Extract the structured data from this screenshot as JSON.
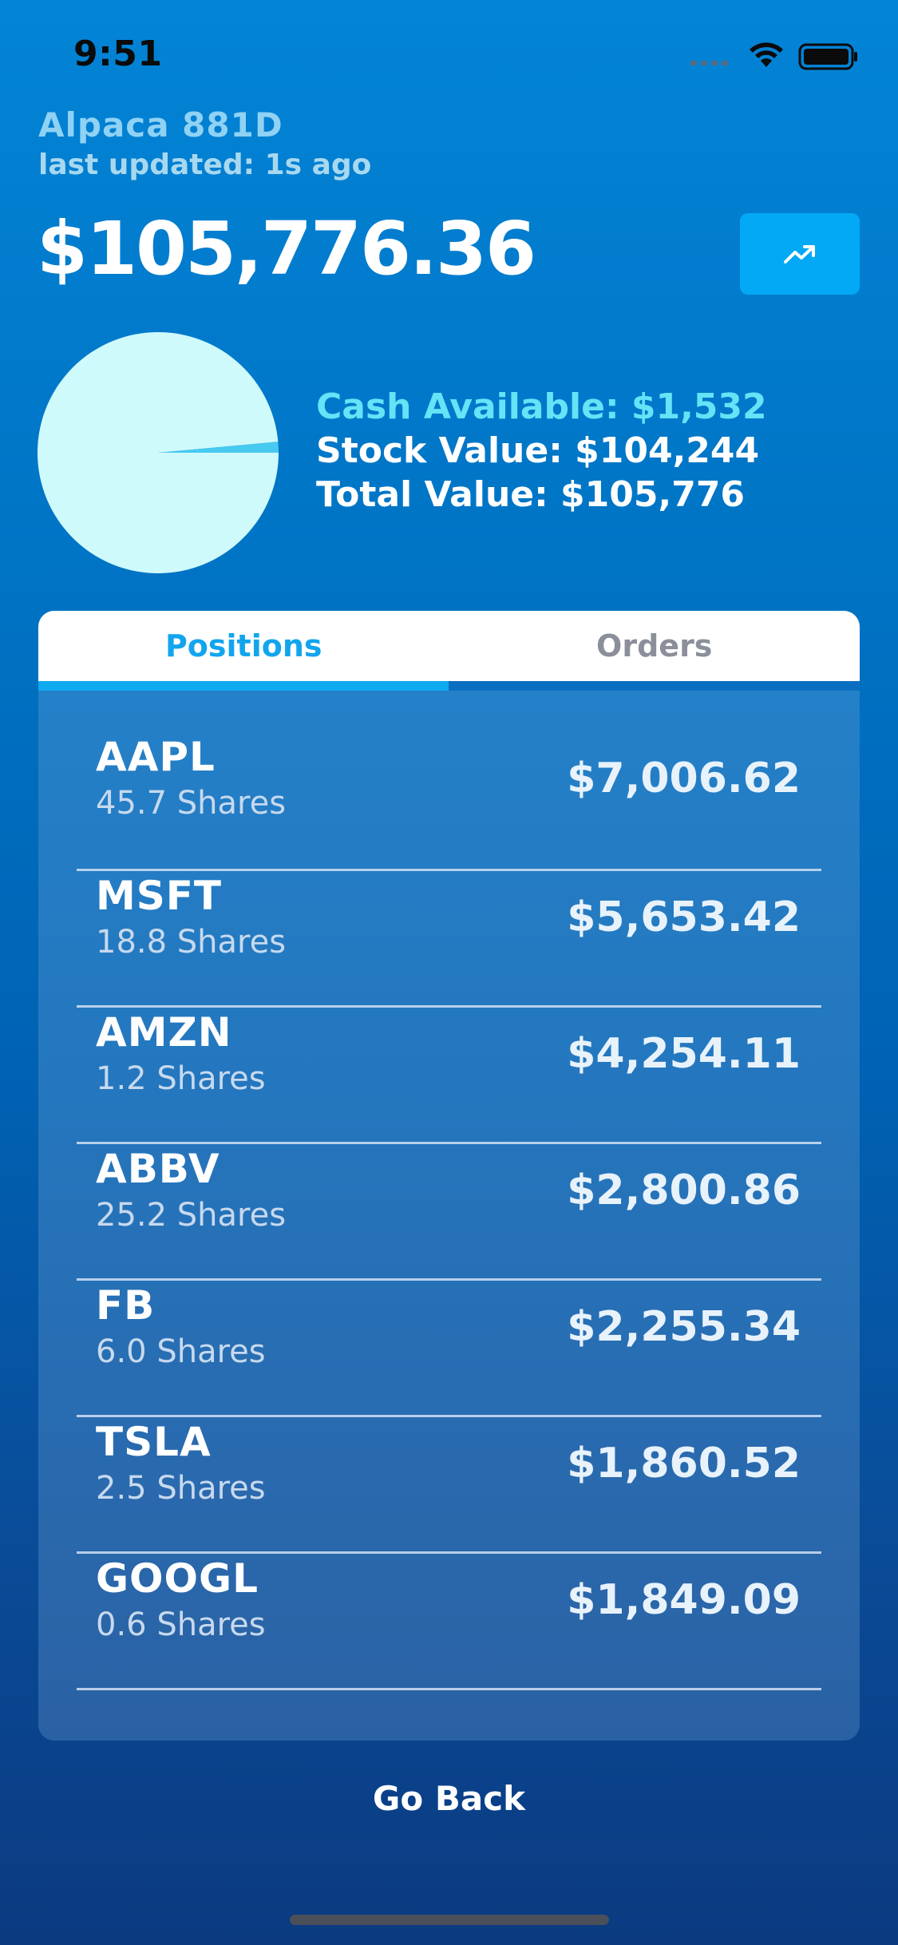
{
  "status_bar": {
    "time": "9:51"
  },
  "header": {
    "account_name": "Alpaca 881D",
    "last_updated": "last updated: 1s ago",
    "total_value": "$105,776.36",
    "chart_button_icon": "trending-up-icon"
  },
  "summary": {
    "cash": "Cash Available: $1,532",
    "stock": "Stock Value: $104,244",
    "total": "Total Value: $105,776",
    "pie": {
      "cash_value": 1532,
      "stock_value": 104244,
      "colors": {
        "cash": "#47c9f0",
        "stock": "#cffafb"
      }
    }
  },
  "tabs": [
    {
      "label": "Positions",
      "active": true
    },
    {
      "label": "Orders",
      "active": false
    }
  ],
  "positions": [
    {
      "symbol": "AAPL",
      "shares": "45.7 Shares",
      "value": "$7,006.62"
    },
    {
      "symbol": "MSFT",
      "shares": "18.8 Shares",
      "value": "$5,653.42"
    },
    {
      "symbol": "AMZN",
      "shares": "1.2 Shares",
      "value": "$4,254.11"
    },
    {
      "symbol": "ABBV",
      "shares": "25.2 Shares",
      "value": "$2,800.86"
    },
    {
      "symbol": "FB",
      "shares": "6.0 Shares",
      "value": "$2,255.34"
    },
    {
      "symbol": "TSLA",
      "shares": "2.5 Shares",
      "value": "$1,860.52"
    },
    {
      "symbol": "GOOGL",
      "shares": "0.6 Shares",
      "value": "$1,849.09"
    }
  ],
  "footer": {
    "go_back": "Go Back"
  },
  "colors": {
    "accent": "#03a9f4",
    "cash_text": "#65e3f7"
  }
}
